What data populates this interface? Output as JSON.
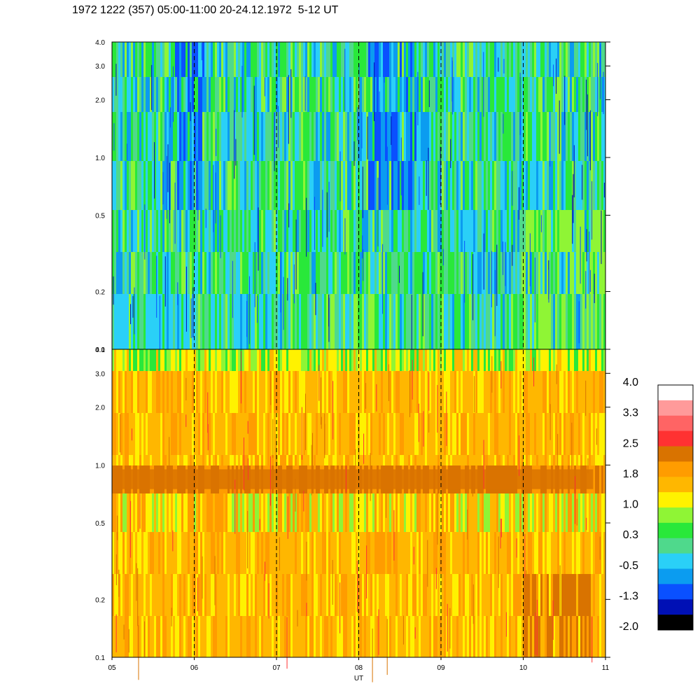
{
  "title": "1972 1222 (357) 05:00-11:00 20-24.12.1972  5-12 UT",
  "chart_data": {
    "type": "heatmap",
    "title": "1972 1222 (357) 05:00-11:00 20-24.12.1972  5-12 UT",
    "xlabel": "UT",
    "x_ticks": [
      "05",
      "06",
      "07",
      "08",
      "09",
      "10",
      "11"
    ],
    "x_range": [
      5,
      11
    ],
    "y_scale": "log",
    "y_ticks": [
      "0.1",
      "0.2",
      "0.5",
      "1.0",
      "2.0",
      "3.0",
      "4.0"
    ],
    "y_range": [
      0.1,
      4.0
    ],
    "vertical_dashed_lines_at": [
      6,
      7,
      8,
      9,
      10
    ],
    "panels": [
      {
        "name": "upper",
        "dominant_levels": "mostly -0.5 to 1.0 (blue-green); darker blue bands near 06, 08:10-08:40 above 1.0; yellow-green patches after 10 below 0.5",
        "base_colors": [
          "#29e83a",
          "#4fd98c",
          "#2ad0f7",
          "#0b9cf0",
          "#0a50ff",
          "#8ff535"
        ]
      },
      {
        "name": "lower",
        "dominant_levels": "mostly 1.0 to 2.5 (yellow-orange); darker orange band ~0.75-0.95 across full time span; red streaks",
        "base_colors": [
          "#ffb700",
          "#ff9c00",
          "#fff200",
          "#8ff535",
          "#d97300",
          "#ff3333"
        ]
      }
    ],
    "colorbar": {
      "labels": [
        "4.0",
        "3.3",
        "2.5",
        "1.8",
        "1.0",
        "0.3",
        "-0.5",
        "-1.3",
        "-2.0"
      ],
      "colors_top_to_bottom": [
        "#ffffff",
        "#ff9a9a",
        "#ff6464",
        "#ff3232",
        "#d97300",
        "#ff9c00",
        "#ffb700",
        "#fff200",
        "#8ff535",
        "#29e83a",
        "#4fd98c",
        "#2ad0f7",
        "#0b9cf0",
        "#0a50ff",
        "#0010b5",
        "#000000"
      ]
    }
  }
}
